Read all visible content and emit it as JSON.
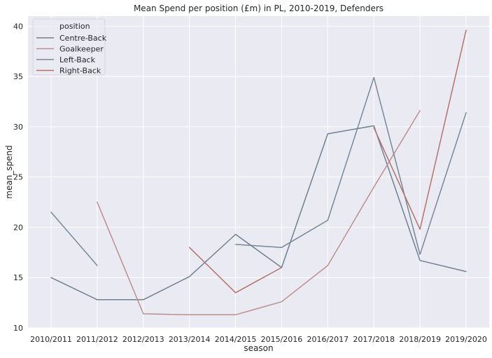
{
  "chart_data": {
    "type": "line",
    "title": "Mean Spend per position (£m) in PL, 2010-2019, Defenders",
    "xlabel": "season",
    "ylabel": "mean_spend",
    "categories": [
      "2010/2011",
      "2011/2012",
      "2012/2013",
      "2013/2014",
      "2014/2015",
      "2015/2016",
      "2016/2017",
      "2017/2018",
      "2018/2019",
      "2019/2020"
    ],
    "ylim": [
      10,
      41
    ],
    "yticks": [
      10,
      15,
      20,
      25,
      30,
      35,
      40
    ],
    "grid": true,
    "background": "#eaeaf2",
    "legend": {
      "title": "position",
      "placement": "top-left"
    },
    "series": [
      {
        "name": "Centre-Back",
        "color": "#708090",
        "values": [
          15.0,
          12.8,
          12.8,
          15.1,
          19.3,
          16.0,
          29.3,
          30.1,
          16.7,
          15.6
        ]
      },
      {
        "name": "Goalkeeper",
        "color": "#bc8f8f",
        "values": [
          null,
          22.5,
          11.4,
          11.3,
          11.3,
          12.6,
          16.2,
          24.0,
          31.6,
          null
        ]
      },
      {
        "name": "Left-Back",
        "color": "#778899",
        "values": [
          21.5,
          16.2,
          null,
          null,
          18.3,
          18.0,
          20.7,
          34.9,
          17.3,
          31.4
        ]
      },
      {
        "name": "Right-Back",
        "color": "#b5736d",
        "values": [
          null,
          null,
          null,
          18.0,
          13.5,
          16.0,
          null,
          29.9,
          19.8,
          39.6
        ]
      }
    ]
  }
}
